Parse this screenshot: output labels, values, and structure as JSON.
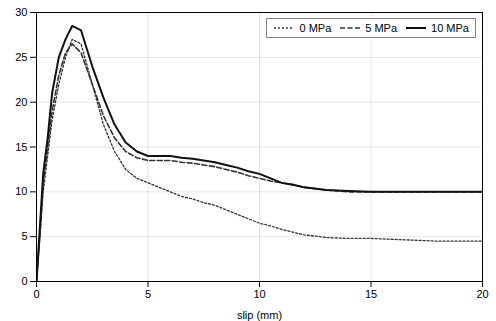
{
  "chart_data": {
    "type": "line",
    "xlabel": "slip (mm)",
    "x": [
      0,
      0.15,
      0.3,
      0.5,
      0.7,
      1.0,
      1.3,
      1.6,
      2.0,
      2.5,
      3.0,
      3.5,
      4.0,
      4.5,
      5.0,
      5.5,
      6.0,
      6.5,
      7.0,
      7.5,
      8.0,
      8.5,
      9.0,
      9.5,
      10.0,
      10.5,
      11.0,
      11.5,
      12.0,
      13.0,
      14.0,
      15.0,
      16.0,
      17.0,
      18.0,
      19.0,
      20.0
    ],
    "series": [
      {
        "name": "0 MPa",
        "color": "#333333",
        "line_style": "dotted",
        "values": [
          0,
          5,
          10,
          14,
          18,
          22,
          25,
          27,
          26.5,
          22,
          17.5,
          14.5,
          12.5,
          11.5,
          11.0,
          10.5,
          10.0,
          9.5,
          9.2,
          8.8,
          8.5,
          8.0,
          7.5,
          7.0,
          6.5,
          6.2,
          5.8,
          5.5,
          5.2,
          4.9,
          4.8,
          4.8,
          4.7,
          4.6,
          4.5,
          4.5,
          4.5
        ]
      },
      {
        "name": "5 MPa",
        "color": "#333333",
        "line_style": "dashed",
        "values": [
          0,
          5,
          11,
          15,
          19,
          23,
          25.5,
          26.5,
          25.5,
          22,
          18.5,
          16.0,
          14.5,
          13.8,
          13.5,
          13.5,
          13.5,
          13.3,
          13.2,
          13.0,
          12.8,
          12.5,
          12.2,
          11.8,
          11.5,
          11.2,
          11.0,
          10.8,
          10.5,
          10.2,
          10.0,
          10.0,
          10.0,
          10.0,
          10.0,
          10.0,
          10.0
        ]
      },
      {
        "name": "10 MPa",
        "color": "#111111",
        "line_style": "solid",
        "values": [
          0,
          6,
          12,
          16,
          21,
          25,
          27,
          28.5,
          28,
          24,
          20.5,
          17.5,
          15.5,
          14.5,
          14.0,
          14.0,
          14.0,
          13.8,
          13.7,
          13.5,
          13.3,
          13.0,
          12.7,
          12.3,
          12.0,
          11.5,
          11.0,
          10.8,
          10.5,
          10.2,
          10.1,
          10.0,
          10.0,
          10.0,
          10.0,
          10.0,
          10.0
        ]
      }
    ],
    "xlim": [
      0,
      20
    ],
    "ylim": [
      0,
      30
    ],
    "xticks": [
      0,
      5,
      10,
      15,
      20
    ],
    "yticks": [
      0,
      5,
      10,
      15,
      20,
      25,
      30
    ],
    "grid": true,
    "legend": "upper right"
  }
}
